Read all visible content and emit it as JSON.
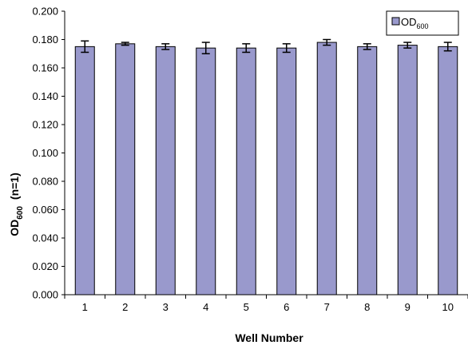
{
  "chart_data": {
    "type": "bar",
    "categories": [
      "1",
      "2",
      "3",
      "4",
      "5",
      "6",
      "7",
      "8",
      "9",
      "10"
    ],
    "series": [
      {
        "name": "OD600",
        "values": [
          0.175,
          0.177,
          0.175,
          0.174,
          0.174,
          0.174,
          0.178,
          0.175,
          0.176,
          0.175
        ],
        "errors": [
          0.004,
          0.001,
          0.002,
          0.004,
          0.003,
          0.003,
          0.002,
          0.002,
          0.002,
          0.003
        ],
        "color": "#9999cc"
      }
    ],
    "ylim": [
      0,
      0.2
    ],
    "yticks": [
      "0.000",
      "0.020",
      "0.040",
      "0.060",
      "0.080",
      "0.100",
      "0.120",
      "0.140",
      "0.160",
      "0.180",
      "0.200"
    ],
    "xlabel": "Well Number",
    "ylabel": {
      "main": "OD",
      "subscript": "600",
      "suffix": "(n=1)"
    },
    "legend": {
      "label_main": "OD",
      "label_sub": "600",
      "position": "top-right"
    },
    "grid": false
  }
}
